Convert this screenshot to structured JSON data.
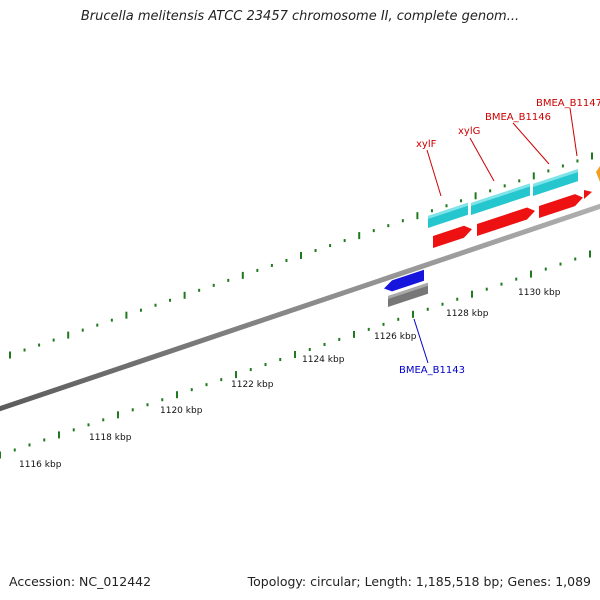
{
  "title": "Brucella melitensis ATCC 23457 chromosome II, complete genom...",
  "footer": {
    "accession": "Accession: NC_012442",
    "topology": "Topology: circular; Length: 1,185,518 bp; Genes: 1,089"
  },
  "map": {
    "tick_labels": [
      "1116 kbp",
      "1118 kbp",
      "1120 kbp",
      "1122 kbp",
      "1124 kbp",
      "1126 kbp",
      "1128 kbp",
      "1130 kbp"
    ],
    "forward_features": [
      {
        "type": "gene",
        "color": "#26c6cf"
      },
      {
        "type": "CDS",
        "color": "#ee1111"
      }
    ],
    "reverse_features": [
      {
        "type": "gene",
        "color": "#777777"
      },
      {
        "type": "CDS",
        "color": "#1515dd"
      }
    ],
    "gene_labels": [
      {
        "text": "xylF",
        "strand": "forward"
      },
      {
        "text": "xylG",
        "strand": "forward"
      },
      {
        "text": "BMEA_B1146",
        "strand": "forward"
      },
      {
        "text": "BMEA_B1147",
        "strand": "forward"
      },
      {
        "text": "BMEA_B1143",
        "strand": "reverse"
      }
    ],
    "colors": {
      "backbone": "#8a8a8a",
      "tick": "#1f7a1f",
      "gene": "#26c6cf",
      "cds": "#ee1111",
      "reverse_gene": "#777777",
      "reverse_cds": "#1515dd",
      "edge_feature": "#f0a020"
    }
  }
}
